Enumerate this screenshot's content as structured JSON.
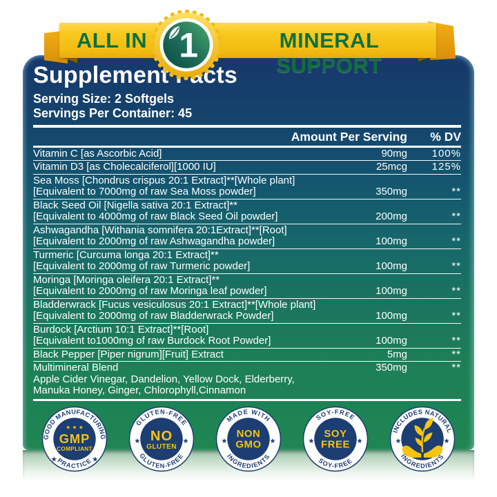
{
  "banner": {
    "left_text": "ALL IN",
    "seal_number": "1",
    "right_text": "MINERAL SUPPORT"
  },
  "header": {
    "title": "Supplement Facts",
    "serving_size": "Serving Size: 2 Softgels",
    "servings_per_container": "Servings Per Container: 45"
  },
  "table": {
    "columns": {
      "amount": "Amount Per Serving",
      "dv": "% DV"
    },
    "rows": [
      {
        "lines": [
          "Vitamin C [as Ascorbic Acid]"
        ],
        "amount": "90mg",
        "dv": "100%"
      },
      {
        "lines": [
          "Vitamin D3 [as Cholecalciferol][1000 IU]"
        ],
        "amount": "25mcg",
        "dv": "125%"
      },
      {
        "lines": [
          "Sea Moss [Chondrus crispus 20:1 Extract]**[Whole plant]",
          "[Equivalent to 7000mg of raw Sea Moss powder]"
        ],
        "amount": "350mg",
        "dv": "**"
      },
      {
        "lines": [
          "Black Seed Oil [Nigella sativa 20:1 Extract]**",
          "[Equivalent to 4000mg of raw Black Seed Oil powder]"
        ],
        "amount": "200mg",
        "dv": "**"
      },
      {
        "lines": [
          "Ashwagandha [Withania somnifera 20:1Extract]**[Root]",
          "[Equivalent to 2000mg of raw Ashwagandha powder]"
        ],
        "amount": "100mg",
        "dv": "**"
      },
      {
        "lines": [
          "Turmeric [Curcuma longa 20:1 Extract]**",
          "[Equivalent to 2000mg of raw Turmeric powder]"
        ],
        "amount": "100mg",
        "dv": "**"
      },
      {
        "lines": [
          "Moringa [Moringa oleifera 20:1 Extract]**",
          "[Equivalent to 2000mg of raw Moringa leaf powder]"
        ],
        "amount": "100mg",
        "dv": "**"
      },
      {
        "lines": [
          "Bladderwrack [Fucus vesiculosus 20:1 Extract]**[Whole plant]",
          "[Equivalent to 2000mg of raw Bladderwrack Powder]"
        ],
        "amount": "100mg",
        "dv": "**"
      },
      {
        "lines": [
          "Burdock [Arctium 10:1 Extract]**[Root]",
          "[Equivalent to1000mg of raw Burdock Root Powder]"
        ],
        "amount": "100mg",
        "dv": "**"
      },
      {
        "lines": [
          "Black Pepper [Piper nigrum][Fruit] Extract"
        ],
        "amount": "5mg",
        "dv": "**"
      },
      {
        "lines": [
          "Multimineral Blend",
          "Apple Cider Vinegar, Dandelion, Yellow Dock, Elderberry,",
          "Manuka Honey, Ginger, Chlorophyll,Cinnamon"
        ],
        "amount": "350mg",
        "dv": "**"
      }
    ]
  },
  "badges": [
    {
      "id": "gmp-compliant",
      "top": "GOOD MANUFACTURING",
      "bottom": "PRACTICE",
      "center": [
        "GMP",
        "COMPLIANT"
      ],
      "center_stars": "★ ★ ★"
    },
    {
      "id": "no-gluten",
      "top": "GLUTEN-FREE",
      "bottom": "GLUTEN-FREE",
      "center": [
        "NO",
        "GLUTEN"
      ]
    },
    {
      "id": "non-gmo",
      "top": "MADE WITH",
      "bottom": "INGREDIENTS",
      "center": [
        "NON",
        "GMO"
      ]
    },
    {
      "id": "soy-free",
      "top": "SOY-FREE",
      "bottom": "SOY-FREE",
      "center": [
        "SOY",
        "FREE"
      ]
    },
    {
      "id": "natural-ingredients",
      "top": "INCLUDES NATURAL",
      "bottom": "INGREDIENTS",
      "center": [],
      "icon": "hands-plant-icon"
    }
  ],
  "colors": {
    "panel_top_navy": "#16386b",
    "panel_bottom_green": "#1f8652",
    "ribbon_yellow": "#f5c51d",
    "banner_text_green": "#0f7038",
    "badge_navy": "#1d3e72",
    "badge_yellow": "#f5c411",
    "text_white": "#ffffff"
  }
}
